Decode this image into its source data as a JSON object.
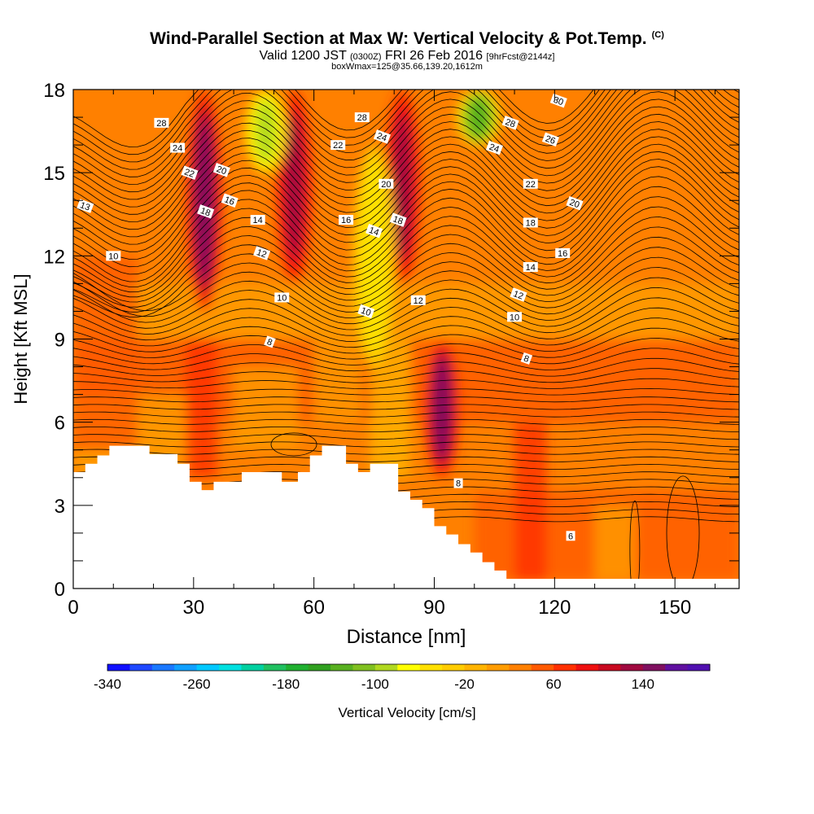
{
  "title": {
    "main": "Wind-Parallel Section at Max W: Vertical Velocity & Pot.Temp.",
    "copyright": "(C)",
    "valid_a": "Valid 1200 JST",
    "valid_utc": "(0300Z)",
    "valid_b": "FRI 26 Feb 2016",
    "forecast": "[9hrFcst@2144z]",
    "subtitle2": "boxWmax=125@35.66,139.20,1612m"
  },
  "chart_data": {
    "type": "heatmap",
    "xlabel": "Distance [nm]",
    "ylabel": "Height [Kft MSL]",
    "xlim": [
      0,
      166
    ],
    "ylim": [
      0,
      18
    ],
    "x_ticks": [
      0,
      30,
      60,
      90,
      120,
      150
    ],
    "y_ticks": [
      0,
      3,
      6,
      9,
      12,
      15,
      18
    ],
    "grid": false,
    "colorbar": {
      "label": "Vertical Velocity [cm/s]",
      "tick_labels": [
        "-340",
        "-260",
        "-180",
        "-100",
        "-20",
        "60",
        "140"
      ],
      "tick_values": [
        -340,
        -260,
        -180,
        -100,
        -20,
        60,
        140
      ],
      "range": [
        -340,
        200
      ],
      "interval": 20,
      "colors": [
        "#1010ff",
        "#1f48ff",
        "#1a78ff",
        "#10a0ff",
        "#00c8ff",
        "#00e0e0",
        "#00d0a0",
        "#20c060",
        "#20b030",
        "#30a020",
        "#58b020",
        "#80c020",
        "#b0d820",
        "#ffff00",
        "#ffe000",
        "#ffcc00",
        "#ffb400",
        "#ff9c00",
        "#ff8000",
        "#ff5a00",
        "#ff3000",
        "#ee1010",
        "#c80a20",
        "#a00a40",
        "#801060",
        "#6010a0",
        "#5010b0"
      ]
    },
    "velocity_features": [
      {
        "kind": "updraft",
        "x": 36,
        "y_range": [
          10,
          18
        ],
        "w_max": 140
      },
      {
        "kind": "updraft",
        "x": 58,
        "y_range": [
          11,
          18
        ],
        "w_max": 120
      },
      {
        "kind": "updraft",
        "x": 85,
        "y_range": [
          11,
          18
        ],
        "w_max": 120
      },
      {
        "kind": "updraft",
        "x": 94,
        "y_range": [
          4,
          9
        ],
        "w_max": 140
      },
      {
        "kind": "downdraft",
        "x": 48,
        "y_range": [
          15,
          18
        ],
        "w_min": -100
      },
      {
        "kind": "downdraft",
        "x": 75,
        "y_range": [
          8,
          16
        ],
        "w_min": -60
      },
      {
        "kind": "downdraft",
        "x": 101,
        "y_range": [
          16,
          18
        ],
        "w_min": -140
      }
    ],
    "theta_contour_labels": [
      {
        "text": "30",
        "x": 121,
        "y": 17.6
      },
      {
        "text": "28",
        "x": 22,
        "y": 16.8
      },
      {
        "text": "28",
        "x": 72,
        "y": 17.0
      },
      {
        "text": "28",
        "x": 109,
        "y": 16.8
      },
      {
        "text": "26",
        "x": 119,
        "y": 16.2
      },
      {
        "text": "24",
        "x": 26,
        "y": 15.9
      },
      {
        "text": "24",
        "x": 77,
        "y": 16.3
      },
      {
        "text": "24",
        "x": 105,
        "y": 15.9
      },
      {
        "text": "22",
        "x": 29,
        "y": 15.0
      },
      {
        "text": "22",
        "x": 66,
        "y": 16.0
      },
      {
        "text": "22",
        "x": 114,
        "y": 14.6
      },
      {
        "text": "20",
        "x": 37,
        "y": 15.1
      },
      {
        "text": "20",
        "x": 78,
        "y": 14.6
      },
      {
        "text": "20",
        "x": 125,
        "y": 13.9
      },
      {
        "text": "18",
        "x": 33,
        "y": 13.6
      },
      {
        "text": "18",
        "x": 81,
        "y": 13.3
      },
      {
        "text": "18",
        "x": 114,
        "y": 13.2
      },
      {
        "text": "16",
        "x": 39,
        "y": 14.0
      },
      {
        "text": "16",
        "x": 68,
        "y": 13.3
      },
      {
        "text": "16",
        "x": 122,
        "y": 12.1
      },
      {
        "text": "14",
        "x": 46,
        "y": 13.3
      },
      {
        "text": "14",
        "x": 75,
        "y": 12.9
      },
      {
        "text": "14",
        "x": 114,
        "y": 11.6
      },
      {
        "text": "13",
        "x": 3,
        "y": 13.8
      },
      {
        "text": "12",
        "x": 47,
        "y": 12.1
      },
      {
        "text": "12",
        "x": 86,
        "y": 10.4
      },
      {
        "text": "12",
        "x": 111,
        "y": 10.6
      },
      {
        "text": "10",
        "x": 10,
        "y": 12.0
      },
      {
        "text": "10",
        "x": 52,
        "y": 10.5
      },
      {
        "text": "10",
        "x": 73,
        "y": 10.0
      },
      {
        "text": "10",
        "x": 110,
        "y": 9.8
      },
      {
        "text": "8",
        "x": 49,
        "y": 8.9
      },
      {
        "text": "8",
        "x": 113,
        "y": 8.3
      },
      {
        "text": "8",
        "x": 96,
        "y": 3.8
      },
      {
        "text": "6",
        "x": 124,
        "y": 1.9
      }
    ],
    "terrain_top": [
      [
        0,
        4.2
      ],
      [
        3,
        4.5
      ],
      [
        6,
        4.8
      ],
      [
        9,
        5.15
      ],
      [
        19,
        4.85
      ],
      [
        26,
        4.5
      ],
      [
        29,
        3.85
      ],
      [
        32,
        3.55
      ],
      [
        35,
        3.85
      ],
      [
        42,
        4.2
      ],
      [
        52,
        3.85
      ],
      [
        56,
        4.2
      ],
      [
        59,
        4.8
      ],
      [
        62,
        5.15
      ],
      [
        68,
        4.5
      ],
      [
        71,
        4.2
      ],
      [
        74,
        4.5
      ],
      [
        81,
        3.5
      ],
      [
        84,
        3.2
      ],
      [
        87,
        2.9
      ],
      [
        90,
        2.25
      ],
      [
        93,
        1.95
      ],
      [
        96,
        1.6
      ],
      [
        99,
        1.3
      ],
      [
        102,
        0.95
      ],
      [
        105,
        0.65
      ],
      [
        108,
        0.35
      ],
      [
        166,
        0.35
      ]
    ]
  }
}
